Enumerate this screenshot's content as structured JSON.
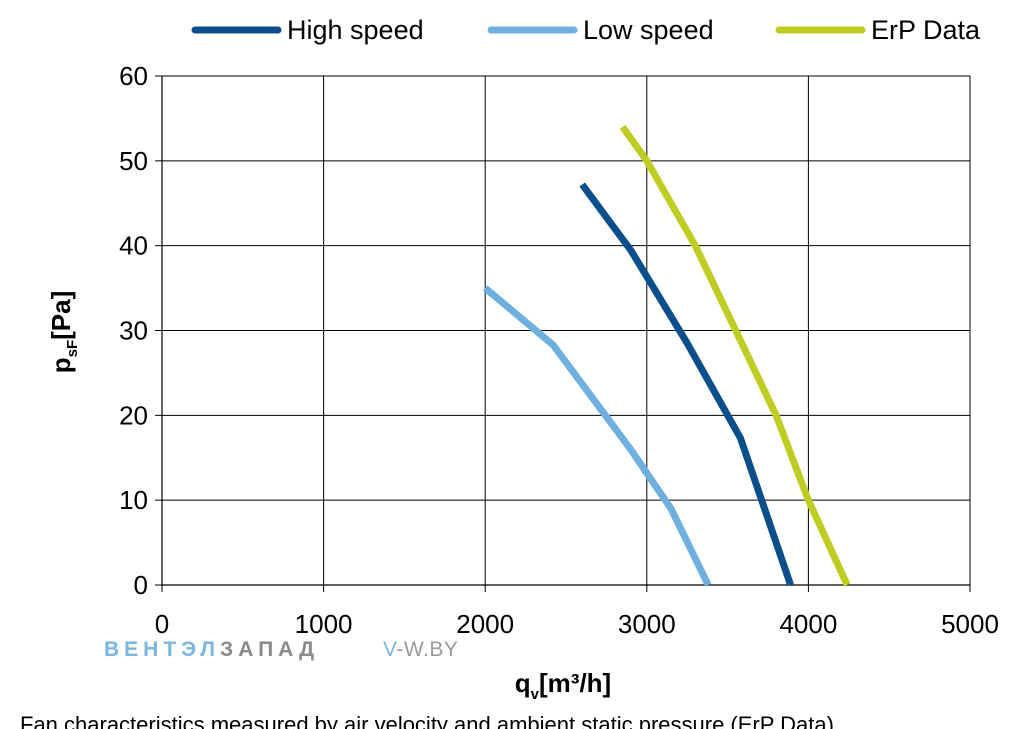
{
  "chart_data": {
    "type": "line",
    "title": "",
    "xlabel": {
      "main": "q",
      "sub": "v",
      "rest": "[m³/h]"
    },
    "ylabel": {
      "main": "p",
      "sub": "sF",
      "rest": "[Pa]"
    },
    "xlim": [
      0,
      5000
    ],
    "ylim": [
      0,
      60
    ],
    "xticks": [
      0,
      1000,
      2000,
      3000,
      4000,
      5000
    ],
    "yticks": [
      0,
      10,
      20,
      30,
      40,
      50,
      60
    ],
    "grid": true,
    "legend_position": "top",
    "series": [
      {
        "name": "High speed",
        "color": "#0a4f8c",
        "x": [
          2600,
          2900,
          3250,
          3580,
          3890
        ],
        "y": [
          47.2,
          39.5,
          28.5,
          17.3,
          0
        ]
      },
      {
        "name": "Low speed",
        "color": "#6fb0e0",
        "x": [
          2000,
          2420,
          2900,
          3150,
          3380
        ],
        "y": [
          35,
          28.3,
          16,
          9,
          0
        ]
      },
      {
        "name": "ErP Data",
        "color": "#bfcd22",
        "x": [
          2850,
          3000,
          3300,
          3550,
          3800,
          4000,
          4240
        ],
        "y": [
          54,
          50,
          40,
          30,
          20,
          10,
          0
        ]
      }
    ]
  },
  "watermark": {
    "brand_part1": "ВЕНТЭЛ",
    "brand_part2": "ЗАПАД",
    "site_part1": "V",
    "site_part2": "-W.BY"
  },
  "footnote": "Fan characteristics measured by air velocity and ambient static pressure (ErP Data)"
}
